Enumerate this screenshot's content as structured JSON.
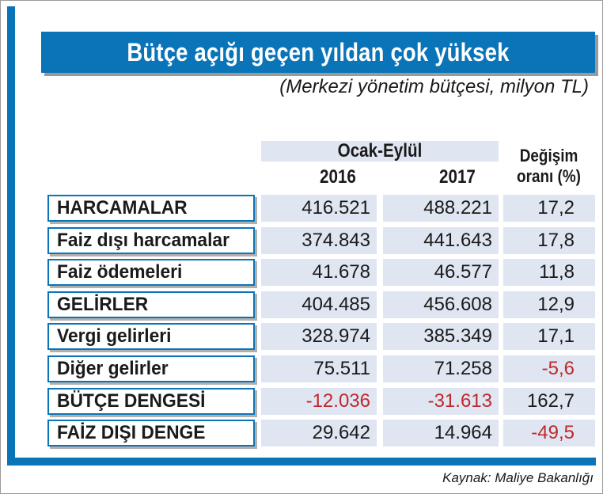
{
  "title": "Bütçe açığı geçen yıldan çok yüksek",
  "subtitle": "(Merkezi yönetim bütçesi, milyon TL)",
  "source": "Kaynak: Maliye Bakanlığı",
  "colors": {
    "accent": "#0a74b8",
    "cell_bg": "#dfe6f1",
    "negative": "#c0272d"
  },
  "chart_data": {
    "type": "table",
    "period_header": "Ocak-Eylül",
    "columns": [
      "2016",
      "2017",
      "Değişim oranı (%)"
    ],
    "change_header_lines": [
      "Değişim",
      "oranı (%)"
    ],
    "rows": [
      {
        "label": "HARCAMALAR",
        "v2016": "416.521",
        "v2017": "488.221",
        "change": "17,2"
      },
      {
        "label": "Faiz dışı harcamalar",
        "v2016": "374.843",
        "v2017": "441.643",
        "change": "17,8"
      },
      {
        "label": "Faiz ödemeleri",
        "v2016": "41.678",
        "v2017": "46.577",
        "change": "11,8"
      },
      {
        "label": "GELİRLER",
        "v2016": "404.485",
        "v2017": "456.608",
        "change": "12,9"
      },
      {
        "label": "Vergi gelirleri",
        "v2016": "328.974",
        "v2017": "385.349",
        "change": "17,1"
      },
      {
        "label": "Diğer gelirler",
        "v2016": "75.511",
        "v2017": "71.258",
        "change": "-5,6"
      },
      {
        "label": "BÜTÇE DENGESİ",
        "v2016": "-12.036",
        "v2017": "-31.613",
        "change": "162,7"
      },
      {
        "label": "FAİZ DIŞI DENGE",
        "v2016": "29.642",
        "v2017": "14.964",
        "change": "-49,5"
      }
    ]
  }
}
